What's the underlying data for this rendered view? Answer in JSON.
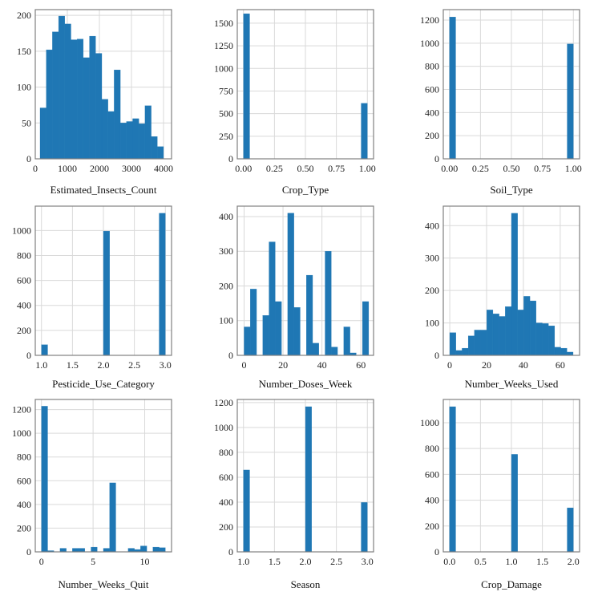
{
  "chart_data": [
    {
      "type": "bar",
      "xlabel": "Estimated_Insects_Count",
      "xlim": [
        0,
        4250
      ],
      "ylim": [
        0,
        208
      ],
      "xticks": [
        0,
        1000,
        2000,
        3000,
        4000
      ],
      "xtick_labels": [
        "0",
        "1000",
        "2000",
        "3000",
        "4000"
      ],
      "yticks": [
        0,
        50,
        100,
        150,
        200
      ],
      "ytick_labels": [
        "0",
        "50",
        "100",
        "150",
        "200"
      ],
      "grid": true,
      "bin_edges": [
        150,
        342.5,
        535,
        727.5,
        920,
        1112.5,
        1305,
        1497.5,
        1690,
        1882.5,
        2075,
        2267.5,
        2460,
        2652.5,
        2845,
        3037.5,
        3230,
        3422.5,
        3615,
        3807.5,
        4000
      ],
      "values": [
        71,
        152,
        177,
        199,
        188,
        166,
        167,
        141,
        171,
        147,
        83,
        66,
        124,
        50,
        52,
        56,
        49,
        74,
        31,
        17
      ]
    },
    {
      "type": "bar",
      "xlabel": "Crop_Type",
      "xlim": [
        -0.05,
        1.05
      ],
      "ylim": [
        0,
        1650
      ],
      "xticks": [
        0,
        0.25,
        0.5,
        0.75,
        1.0
      ],
      "xtick_labels": [
        "0.00",
        "0.25",
        "0.50",
        "0.75",
        "1.00"
      ],
      "yticks": [
        0,
        250,
        500,
        750,
        1000,
        1250,
        1500
      ],
      "ytick_labels": [
        "0",
        "250",
        "500",
        "750",
        "1000",
        "1250",
        "1500"
      ],
      "grid": true,
      "bin_edges": [
        0,
        0.05,
        0.1,
        0.15,
        0.2,
        0.25,
        0.3,
        0.35,
        0.4,
        0.45,
        0.5,
        0.55,
        0.6,
        0.65,
        0.7,
        0.75,
        0.8,
        0.85,
        0.9,
        0.95,
        1.0
      ],
      "values": [
        1605,
        0,
        0,
        0,
        0,
        0,
        0,
        0,
        0,
        0,
        0,
        0,
        0,
        0,
        0,
        0,
        0,
        0,
        0,
        614
      ]
    },
    {
      "type": "bar",
      "xlabel": "Soil_Type",
      "xlim": [
        -0.05,
        1.05
      ],
      "ylim": [
        0,
        1290
      ],
      "xticks": [
        0,
        0.25,
        0.5,
        0.75,
        1.0
      ],
      "xtick_labels": [
        "0.00",
        "0.25",
        "0.50",
        "0.75",
        "1.00"
      ],
      "yticks": [
        0,
        200,
        400,
        600,
        800,
        1000,
        1200
      ],
      "ytick_labels": [
        "0",
        "200",
        "400",
        "600",
        "800",
        "1000",
        "1200"
      ],
      "grid": true,
      "bin_edges": [
        0,
        0.05,
        0.1,
        0.15,
        0.2,
        0.25,
        0.3,
        0.35,
        0.4,
        0.45,
        0.5,
        0.55,
        0.6,
        0.65,
        0.7,
        0.75,
        0.8,
        0.85,
        0.9,
        0.95,
        1.0
      ],
      "values": [
        1226,
        0,
        0,
        0,
        0,
        0,
        0,
        0,
        0,
        0,
        0,
        0,
        0,
        0,
        0,
        0,
        0,
        0,
        0,
        993
      ]
    },
    {
      "type": "bar",
      "xlabel": "Pesticide_Use_Category",
      "xlim": [
        0.9,
        3.1
      ],
      "ylim": [
        0,
        1195
      ],
      "xticks": [
        1.0,
        1.5,
        2.0,
        2.5,
        3.0
      ],
      "xtick_labels": [
        "1.0",
        "1.5",
        "2.0",
        "2.5",
        "3.0"
      ],
      "yticks": [
        0,
        200,
        400,
        600,
        800,
        1000
      ],
      "ytick_labels": [
        "0",
        "200",
        "400",
        "600",
        "800",
        "1000"
      ],
      "grid": true,
      "bin_edges": [
        1.0,
        1.1,
        1.2,
        1.3,
        1.4,
        1.5,
        1.6,
        1.7,
        1.8,
        1.9,
        2.0,
        2.1,
        2.2,
        2.3,
        2.4,
        2.5,
        2.6,
        2.7,
        2.8,
        2.9,
        3.0
      ],
      "values": [
        85,
        0,
        0,
        0,
        0,
        0,
        0,
        0,
        0,
        0,
        995,
        0,
        0,
        0,
        0,
        0,
        0,
        0,
        0,
        1138
      ]
    },
    {
      "type": "bar",
      "xlabel": "Number_Doses_Week",
      "xlim": [
        -3.5,
        66.5
      ],
      "ylim": [
        0,
        430
      ],
      "xticks": [
        0,
        20,
        40,
        60
      ],
      "xtick_labels": [
        "0",
        "20",
        "40",
        "60"
      ],
      "yticks": [
        0,
        100,
        200,
        300,
        400
      ],
      "ytick_labels": [
        "0",
        "100",
        "200",
        "300",
        "400"
      ],
      "grid": true,
      "bin_edges": [
        0,
        3.2,
        6.4,
        9.6,
        12.8,
        16,
        19.2,
        22.4,
        25.6,
        28.8,
        32,
        35.2,
        38.4,
        41.6,
        44.8,
        48,
        51.2,
        54.4,
        57.6,
        60.8,
        64
      ],
      "values": [
        82,
        191,
        0,
        115,
        327,
        155,
        0,
        410,
        138,
        0,
        231,
        35,
        0,
        300,
        24,
        0,
        82,
        7,
        0,
        155
      ]
    },
    {
      "type": "bar",
      "xlabel": "Number_Weeks_Used",
      "xlim": [
        -3.5,
        70.5
      ],
      "ylim": [
        0,
        460
      ],
      "xticks": [
        0,
        20,
        40,
        60
      ],
      "xtick_labels": [
        "0",
        "20",
        "40",
        "60"
      ],
      "yticks": [
        0,
        100,
        200,
        300,
        400
      ],
      "ytick_labels": [
        "0",
        "100",
        "200",
        "300",
        "400"
      ],
      "grid": true,
      "bin_edges": [
        0,
        3.35,
        6.7,
        10.05,
        13.4,
        16.75,
        20.1,
        23.45,
        26.8,
        30.15,
        33.5,
        36.85,
        40.2,
        43.55,
        46.9,
        50.25,
        53.6,
        56.95,
        60.3,
        63.65,
        67
      ],
      "values": [
        70,
        15,
        22,
        60,
        78,
        78,
        140,
        128,
        120,
        150,
        438,
        140,
        182,
        168,
        100,
        98,
        91,
        25,
        22,
        10
      ]
    },
    {
      "type": "bar",
      "xlabel": "Number_Weeks_Quit",
      "xlim": [
        -0.6,
        12.6
      ],
      "ylim": [
        0,
        1285
      ],
      "xticks": [
        0,
        5,
        10
      ],
      "xtick_labels": [
        "0",
        "5",
        "10"
      ],
      "yticks": [
        0,
        200,
        400,
        600,
        800,
        1000,
        1200
      ],
      "ytick_labels": [
        "0",
        "200",
        "400",
        "600",
        "800",
        "1000",
        "1200"
      ],
      "grid": true,
      "bin_edges": [
        0,
        0.6,
        1.2,
        1.8,
        2.4,
        3.0,
        3.6,
        4.2,
        4.8,
        5.4,
        6.0,
        6.6,
        7.2,
        7.8,
        8.4,
        9.0,
        9.6,
        10.2,
        10.8,
        11.4,
        12.0
      ],
      "values": [
        1228,
        10,
        0,
        30,
        0,
        30,
        30,
        0,
        40,
        0,
        30,
        582,
        0,
        0,
        30,
        20,
        50,
        0,
        40,
        35
      ]
    },
    {
      "type": "bar",
      "xlabel": "Season",
      "xlim": [
        0.9,
        3.1
      ],
      "ylim": [
        0,
        1225
      ],
      "xticks": [
        1.0,
        1.5,
        2.0,
        2.5,
        3.0
      ],
      "xtick_labels": [
        "1.0",
        "1.5",
        "2.0",
        "2.5",
        "3.0"
      ],
      "yticks": [
        0,
        200,
        400,
        600,
        800,
        1000,
        1200
      ],
      "ytick_labels": [
        "0",
        "200",
        "400",
        "600",
        "800",
        "1000",
        "1200"
      ],
      "grid": true,
      "bin_edges": [
        1.0,
        1.1,
        1.2,
        1.3,
        1.4,
        1.5,
        1.6,
        1.7,
        1.8,
        1.9,
        2.0,
        2.1,
        2.2,
        2.3,
        2.4,
        2.5,
        2.6,
        2.7,
        2.8,
        2.9,
        3.0
      ],
      "values": [
        658,
        0,
        0,
        0,
        0,
        0,
        0,
        0,
        0,
        0,
        1167,
        0,
        0,
        0,
        0,
        0,
        0,
        0,
        0,
        397
      ]
    },
    {
      "type": "bar",
      "xlabel": "Crop_Damage",
      "xlim": [
        -0.1,
        2.1
      ],
      "ylim": [
        0,
        1180
      ],
      "xticks": [
        0,
        0.5,
        1.0,
        1.5,
        2.0
      ],
      "xtick_labels": [
        "0.0",
        "0.5",
        "1.0",
        "1.5",
        "2.0"
      ],
      "yticks": [
        0,
        200,
        400,
        600,
        800,
        1000
      ],
      "ytick_labels": [
        "0",
        "200",
        "400",
        "600",
        "800",
        "1000"
      ],
      "grid": true,
      "bin_edges": [
        0,
        0.1,
        0.2,
        0.3,
        0.4,
        0.5,
        0.6,
        0.7,
        0.8,
        0.9,
        1.0,
        1.1,
        1.2,
        1.3,
        1.4,
        1.5,
        1.6,
        1.7,
        1.8,
        1.9,
        2.0
      ],
      "values": [
        1124,
        0,
        0,
        0,
        0,
        0,
        0,
        0,
        0,
        0,
        755,
        0,
        0,
        0,
        0,
        0,
        0,
        0,
        0,
        341
      ]
    }
  ],
  "colors": {
    "bar": "#1f77b4",
    "frame": "#808080",
    "grid": "#d9d9d9"
  }
}
